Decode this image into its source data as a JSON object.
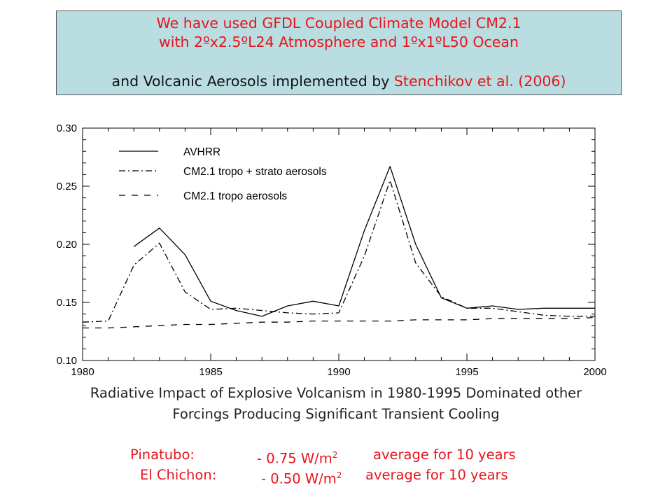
{
  "header": {
    "line1": "We have used GFDL Coupled Climate Model CM2.1",
    "line2": "with 2ºx2.5ºL24 Atmosphere and 1ºx1ºL50 Ocean",
    "line3_prefix": "and Volcanic Aerosols implemented by ",
    "line3_citation": "Stenchikov et al. (2006)"
  },
  "chart_data": {
    "type": "line",
    "title": "",
    "xlabel": "",
    "ylabel": "",
    "xlim": [
      1980,
      2000
    ],
    "ylim": [
      0.1,
      0.3
    ],
    "x_ticks": [
      "1980",
      "1985",
      "1990",
      "1995",
      "2000"
    ],
    "y_ticks": [
      "0.10",
      "0.15",
      "0.20",
      "0.25",
      "0.30"
    ],
    "legend_position": "top-left",
    "series": [
      {
        "name": "AVHRR",
        "style": "solid",
        "points": [
          [
            1982,
            0.198
          ],
          [
            1983,
            0.214
          ],
          [
            1984,
            0.191
          ],
          [
            1985,
            0.151
          ],
          [
            1986,
            0.143
          ],
          [
            1987,
            0.138
          ],
          [
            1988,
            0.147
          ],
          [
            1989,
            0.151
          ],
          [
            1990,
            0.147
          ],
          [
            1991,
            0.212
          ],
          [
            1992,
            0.267
          ],
          [
            1993,
            0.2
          ],
          [
            1994,
            0.154
          ],
          [
            1995,
            0.145
          ],
          [
            1996,
            0.147
          ],
          [
            1997,
            0.144
          ],
          [
            1998,
            0.145
          ],
          [
            1999,
            0.145
          ],
          [
            2000,
            0.145
          ]
        ]
      },
      {
        "name": "CM2.1 tropo + strato aerosols",
        "style": "dashdot",
        "points": [
          [
            1980,
            0.133
          ],
          [
            1981,
            0.134
          ],
          [
            1982,
            0.182
          ],
          [
            1983,
            0.201
          ],
          [
            1984,
            0.159
          ],
          [
            1985,
            0.144
          ],
          [
            1986,
            0.145
          ],
          [
            1987,
            0.143
          ],
          [
            1988,
            0.141
          ],
          [
            1989,
            0.14
          ],
          [
            1990,
            0.141
          ],
          [
            1991,
            0.19
          ],
          [
            1992,
            0.255
          ],
          [
            1993,
            0.184
          ],
          [
            1994,
            0.155
          ],
          [
            1995,
            0.145
          ],
          [
            1996,
            0.145
          ],
          [
            1997,
            0.142
          ],
          [
            1998,
            0.139
          ],
          [
            1999,
            0.138
          ],
          [
            2000,
            0.138
          ]
        ]
      },
      {
        "name": "CM2.1 tropo aerosols",
        "style": "dashed",
        "points": [
          [
            1980,
            0.128
          ],
          [
            1981,
            0.128
          ],
          [
            1982,
            0.129
          ],
          [
            1983,
            0.13
          ],
          [
            1984,
            0.131
          ],
          [
            1985,
            0.131
          ],
          [
            1986,
            0.132
          ],
          [
            1987,
            0.133
          ],
          [
            1988,
            0.133
          ],
          [
            1989,
            0.134
          ],
          [
            1990,
            0.134
          ],
          [
            1991,
            0.134
          ],
          [
            1992,
            0.134
          ],
          [
            1993,
            0.135
          ],
          [
            1994,
            0.135
          ],
          [
            1995,
            0.135
          ],
          [
            1996,
            0.136
          ],
          [
            1997,
            0.136
          ],
          [
            1998,
            0.136
          ],
          [
            1999,
            0.136
          ],
          [
            2000,
            0.137
          ]
        ]
      }
    ]
  },
  "caption": {
    "line1": "Radiative Impact of Explosive Volcanism in 1980-1995 Dominated other",
    "line2": "Forcings Producing Significant Transient Cooling"
  },
  "impacts": [
    {
      "name": "Pinatubo:",
      "value": "- 0.75 W/m",
      "sup": "2",
      "note": "average for 10 years"
    },
    {
      "name": "El Chichon:",
      "value": "- 0.50 W/m",
      "sup": "2",
      "note": "average for 10 years"
    }
  ]
}
